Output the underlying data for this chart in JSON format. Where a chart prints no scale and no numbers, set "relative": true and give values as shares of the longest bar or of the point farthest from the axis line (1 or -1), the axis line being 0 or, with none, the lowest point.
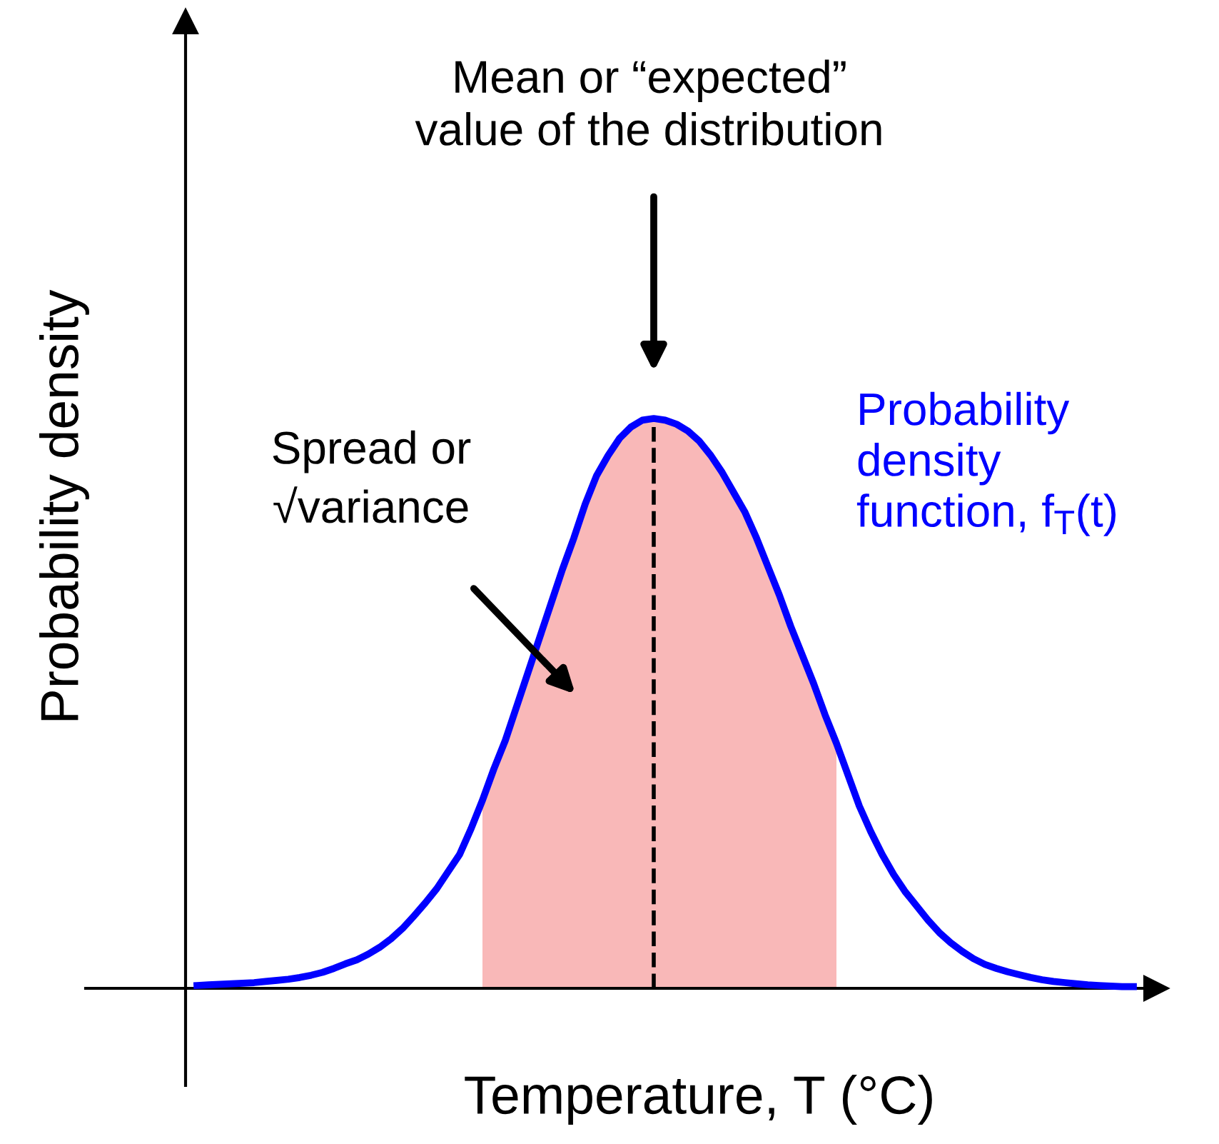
{
  "chart_data": {
    "type": "line",
    "relative": true,
    "xlabel": "Temperature, T (°C)",
    "ylabel": "Probability density",
    "categories": [
      null,
      null,
      null,
      null,
      null,
      null,
      null,
      null,
      null,
      null,
      null,
      null,
      null,
      null,
      null,
      null,
      null,
      null,
      null,
      null,
      null,
      null,
      null,
      null,
      null,
      null,
      null,
      null,
      null,
      null,
      null,
      null,
      null,
      null,
      null,
      null,
      null,
      null,
      null,
      null,
      null,
      null,
      null,
      null,
      null,
      null,
      null,
      null,
      null,
      null,
      null,
      null,
      null,
      null,
      null,
      null,
      null,
      null,
      null,
      null,
      null,
      null,
      null,
      null,
      null,
      null,
      null,
      null,
      null,
      null,
      null,
      null,
      null,
      null,
      null,
      null,
      null,
      null,
      null,
      null,
      null,
      null,
      null
    ],
    "series": [
      {
        "type": "area",
        "color": "#f9b8b8",
        "values": [
          null,
          null,
          null,
          null,
          null,
          null,
          null,
          null,
          null,
          null,
          null,
          null,
          null,
          null,
          null,
          null,
          null,
          null,
          null,
          null,
          null,
          null,
          null,
          null,
          null,
          0.33,
          0.385,
          0.435,
          0.495,
          0.555,
          0.615,
          0.675,
          0.735,
          0.79,
          0.85,
          0.9,
          0.935,
          0.965,
          0.985,
          0.997,
          1,
          0.997,
          0.99,
          0.978,
          0.96,
          0.935,
          0.905,
          0.87,
          0.835,
          0.79,
          0.74,
          0.69,
          0.635,
          0.585,
          0.535,
          0.48,
          0.43,
          null,
          null,
          null,
          null,
          null,
          null,
          null,
          null,
          null,
          null,
          null,
          null,
          null,
          null,
          null,
          null,
          null,
          null,
          null,
          null,
          null,
          null,
          null,
          null,
          null,
          null
        ]
      },
      {
        "name": "Probability density function, f$_{T}$(t)",
        "color": "#0000ff",
        "values": [
          0.005,
          0.006,
          0.007,
          0.008,
          0.009,
          0.01,
          0.012,
          0.014,
          0.016,
          0.019,
          0.023,
          0.028,
          0.035,
          0.043,
          0.05,
          0.06,
          0.072,
          0.087,
          0.105,
          0.127,
          0.15,
          0.175,
          0.205,
          0.235,
          0.28,
          0.33,
          0.385,
          0.435,
          0.495,
          0.555,
          0.615,
          0.675,
          0.735,
          0.79,
          0.85,
          0.9,
          0.935,
          0.965,
          0.985,
          0.997,
          1,
          0.997,
          0.99,
          0.978,
          0.96,
          0.935,
          0.905,
          0.87,
          0.835,
          0.79,
          0.74,
          0.69,
          0.635,
          0.585,
          0.535,
          0.48,
          0.43,
          0.375,
          0.32,
          0.275,
          0.235,
          0.2,
          0.17,
          0.145,
          0.12,
          0.098,
          0.08,
          0.065,
          0.052,
          0.042,
          0.035,
          0.029,
          0.024,
          0.019,
          0.015,
          0.012,
          0.01,
          0.008,
          0.006,
          0.005,
          0.004,
          0.003,
          0.003
        ]
      }
    ],
    "annotations": [
      "Mean or “expected” value of the distribution",
      "Spread or √variance"
    ],
    "grid": false,
    "legend": false,
    "marker": "none",
    "line_style": "solid"
  }
}
